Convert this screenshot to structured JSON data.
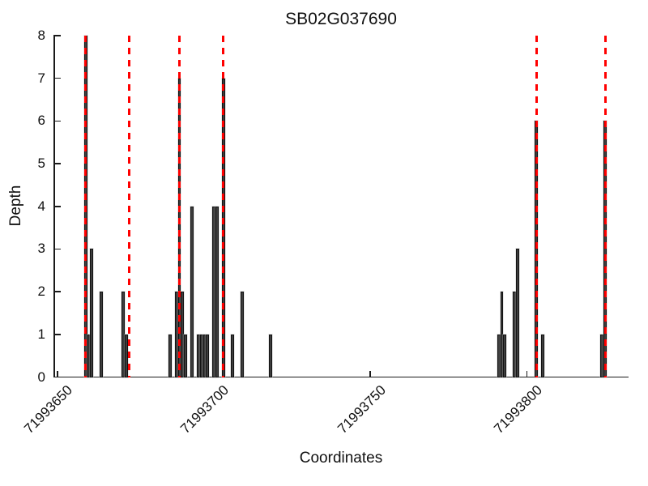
{
  "figure": {
    "title": "SB02G037690"
  },
  "x_axis": {
    "label": "Coordinates",
    "tick_labels": [
      "71993650",
      "71993700",
      "71993750",
      "71993800"
    ]
  },
  "y_axis": {
    "label": "Depth",
    "tick_labels": [
      "0",
      "1",
      "2",
      "3",
      "4",
      "5",
      "6",
      "7",
      "8"
    ]
  },
  "chart_data": {
    "type": "bar",
    "title": "SB02G037690",
    "xlabel": "Coordinates",
    "ylabel": "Depth",
    "xlim": [
      71993649,
      71993832.5
    ],
    "ylim": [
      0,
      8
    ],
    "x_ticks": [
      71993650,
      71993700,
      71993750,
      71993800
    ],
    "y_ticks": [
      0,
      1,
      2,
      3,
      4,
      5,
      6,
      7,
      8
    ],
    "grid": false,
    "legend": false,
    "bar_color": "#3e3e3e",
    "bar_edge_color": "#121212",
    "red_line_color": "#ff0000",
    "red_line_style": "dashed",
    "bars": [
      {
        "x": 71993659,
        "depth": 8
      },
      {
        "x": 71993660,
        "depth": 1
      },
      {
        "x": 71993661,
        "depth": 3
      },
      {
        "x": 71993664,
        "depth": 2
      },
      {
        "x": 71993671,
        "depth": 2
      },
      {
        "x": 71993672,
        "depth": 1
      },
      {
        "x": 71993686,
        "depth": 1
      },
      {
        "x": 71993688,
        "depth": 2
      },
      {
        "x": 71993689,
        "depth": 7
      },
      {
        "x": 71993690,
        "depth": 2
      },
      {
        "x": 71993691,
        "depth": 1
      },
      {
        "x": 71993693,
        "depth": 4
      },
      {
        "x": 71993695,
        "depth": 1
      },
      {
        "x": 71993696,
        "depth": 1
      },
      {
        "x": 71993697,
        "depth": 1
      },
      {
        "x": 71993698,
        "depth": 1
      },
      {
        "x": 71993700,
        "depth": 4
      },
      {
        "x": 71993701,
        "depth": 4
      },
      {
        "x": 71993703,
        "depth": 7
      },
      {
        "x": 71993706,
        "depth": 1
      },
      {
        "x": 71993709,
        "depth": 2
      },
      {
        "x": 71993718,
        "depth": 1
      },
      {
        "x": 71993791,
        "depth": 1
      },
      {
        "x": 71993792,
        "depth": 2
      },
      {
        "x": 71993793,
        "depth": 1
      },
      {
        "x": 71993796,
        "depth": 2
      },
      {
        "x": 71993797,
        "depth": 3
      },
      {
        "x": 71993803,
        "depth": 6
      },
      {
        "x": 71993805,
        "depth": 1
      },
      {
        "x": 71993824,
        "depth": 1
      },
      {
        "x": 71993825,
        "depth": 6
      }
    ],
    "red_dashed_lines_x": [
      71993659,
      71993673,
      71993689,
      71993703,
      71993803,
      71993825
    ]
  }
}
